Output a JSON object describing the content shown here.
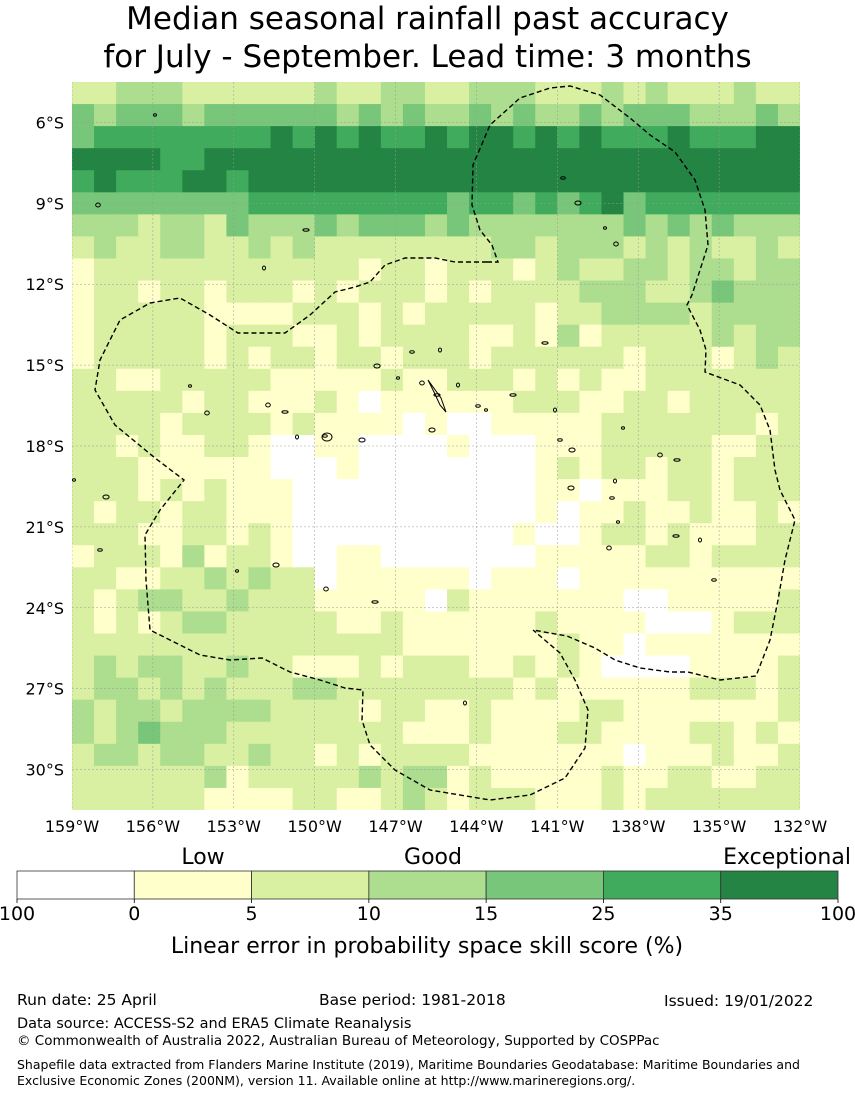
{
  "title": {
    "line1": "Median seasonal rainfall past accuracy",
    "line2": "for July - September. Lead time: 3 months"
  },
  "map": {
    "lat_labels": [
      "6°S",
      "9°S",
      "12°S",
      "15°S",
      "18°S",
      "21°S",
      "24°S",
      "27°S",
      "30°S"
    ],
    "lon_labels": [
      "159°W",
      "156°W",
      "153°W",
      "150°W",
      "147°W",
      "144°W",
      "141°W",
      "138°W",
      "135°W",
      "132°W"
    ],
    "lat_range": [
      -4.5,
      -31.5
    ],
    "lon_range": [
      -159,
      -132
    ]
  },
  "legend": {
    "categories": [
      "Low",
      "Good",
      "Exceptional"
    ],
    "tick_labels": [
      "100",
      "0",
      "5",
      "10",
      "15",
      "25",
      "35",
      "100"
    ],
    "colors": [
      "#ffffff",
      "#ffffcc",
      "#d9f0a3",
      "#addd8e",
      "#78c679",
      "#41ab5d",
      "#238443"
    ],
    "label": "Linear error in probability space skill score (%)"
  },
  "footer": {
    "run_date": "Run date: 25 April",
    "base_period": "Base period: 1981-2018",
    "issued": "Issued: 19/01/2022",
    "data_source": "Data source: ACCESS-S2 and ERA5 Climate Reanalysis",
    "copyright": "© Commonwealth of Australia 2022, Australian Bureau of Meteorology, Supported by COSPPac",
    "shapefile": "Shapefile data extracted from Flanders Marine Institute (2019), Maritime Boundaries Geodatabase: Maritime Boundaries and Exclusive Economic Zones (200NM), version 11. Available online at http://www.marineregions.org/."
  }
}
